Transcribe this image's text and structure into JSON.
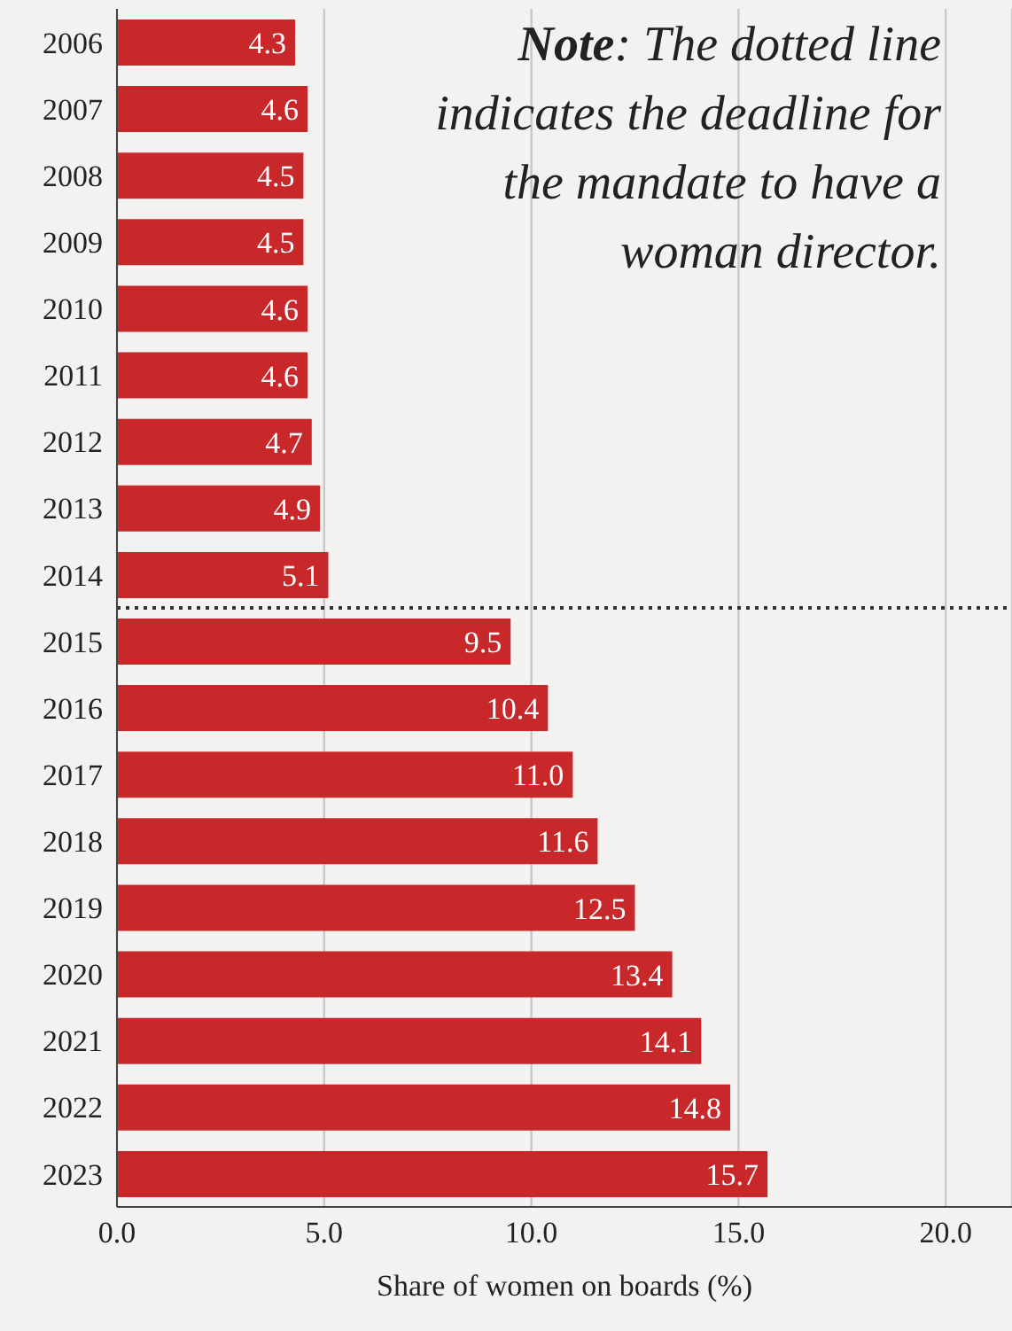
{
  "chart_data": {
    "type": "bar",
    "orientation": "horizontal",
    "xlabel": "Share of women on boards (%)",
    "categories": [
      "2006",
      "2007",
      "2008",
      "2009",
      "2010",
      "2011",
      "2012",
      "2013",
      "2014",
      "2015",
      "2016",
      "2017",
      "2018",
      "2019",
      "2020",
      "2021",
      "2022",
      "2023"
    ],
    "values": [
      4.3,
      4.6,
      4.5,
      4.5,
      4.6,
      4.6,
      4.7,
      4.9,
      5.1,
      9.5,
      10.4,
      11.0,
      11.6,
      12.5,
      13.4,
      14.1,
      14.8,
      15.7
    ],
    "value_labels": [
      "4.3",
      "4.6",
      "4.5",
      "4.5",
      "4.6",
      "4.6",
      "4.7",
      "4.9",
      "5.1",
      "9.5",
      "10.4",
      "11.0",
      "11.6",
      "12.5",
      "13.4",
      "14.1",
      "14.8",
      "15.7"
    ],
    "color": "#c9282b",
    "xlim": [
      0,
      21.6
    ],
    "xticks": [
      {
        "value": 0,
        "label": "0.0"
      },
      {
        "value": 5,
        "label": "5.0"
      },
      {
        "value": 10,
        "label": "10.0"
      },
      {
        "value": 15,
        "label": "15.0"
      },
      {
        "value": 20,
        "label": "20.0"
      }
    ],
    "grid": "x",
    "ref_lines": [
      {
        "axis": "y",
        "value": "2015",
        "color": "#333333",
        "line_style": "dotted"
      }
    ],
    "annotations": [
      "Note: The dotted line indicates the deadline for the mandate to have a woman director."
    ]
  }
}
